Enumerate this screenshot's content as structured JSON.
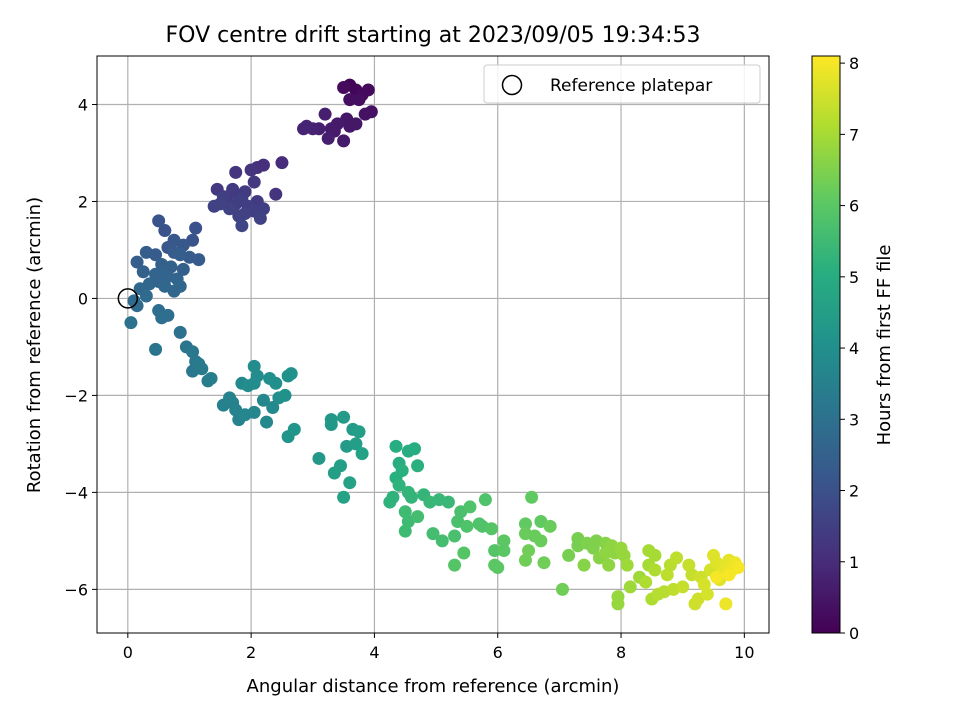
{
  "chart_data": {
    "type": "scatter",
    "title": "FOV centre drift starting at 2023/09/05 19:34:53",
    "xlabel": "Angular distance from reference (arcmin)",
    "ylabel": "Rotation from reference (arcmin)",
    "xlim": [
      -0.5,
      10.4
    ],
    "ylim": [
      -6.9,
      5.0
    ],
    "xticks": [
      0,
      2,
      4,
      6,
      8,
      10
    ],
    "yticks": [
      -6,
      -4,
      -2,
      0,
      2,
      4
    ],
    "xtick_labels": [
      "0",
      "2",
      "4",
      "6",
      "8",
      "10"
    ],
    "ytick_labels": [
      "−6",
      "−4",
      "−2",
      "0",
      "2",
      "4"
    ],
    "grid": true,
    "legend": {
      "placement": "top-right",
      "entries": [
        "Reference platepar"
      ]
    },
    "reference_point": {
      "x": 0,
      "y": 0
    },
    "colorbar": {
      "label": "Hours from first FF file",
      "range": [
        0,
        8.1
      ],
      "ticks": [
        0,
        1,
        2,
        3,
        4,
        5,
        6,
        7,
        8
      ],
      "tick_labels": [
        "0",
        "1",
        "2",
        "3",
        "4",
        "5",
        "6",
        "7",
        "8"
      ],
      "colormap": "viridis"
    },
    "points": [
      {
        "x": 3.6,
        "y": 4.4,
        "h": 0.1
      },
      {
        "x": 3.7,
        "y": 4.3,
        "h": 0.1
      },
      {
        "x": 3.8,
        "y": 4.2,
        "h": 0.2
      },
      {
        "x": 3.9,
        "y": 4.3,
        "h": 0.2
      },
      {
        "x": 3.6,
        "y": 4.1,
        "h": 0.3
      },
      {
        "x": 3.75,
        "y": 4.1,
        "h": 0.3
      },
      {
        "x": 3.5,
        "y": 4.35,
        "h": 0.2
      },
      {
        "x": 3.85,
        "y": 3.8,
        "h": 0.4
      },
      {
        "x": 3.95,
        "y": 3.85,
        "h": 0.4
      },
      {
        "x": 3.7,
        "y": 3.6,
        "h": 0.5
      },
      {
        "x": 3.55,
        "y": 3.7,
        "h": 0.5
      },
      {
        "x": 3.4,
        "y": 3.6,
        "h": 0.6
      },
      {
        "x": 3.3,
        "y": 3.5,
        "h": 0.6
      },
      {
        "x": 3.2,
        "y": 3.8,
        "h": 0.7
      },
      {
        "x": 3.1,
        "y": 3.5,
        "h": 0.7
      },
      {
        "x": 2.9,
        "y": 3.55,
        "h": 0.8
      },
      {
        "x": 2.85,
        "y": 3.5,
        "h": 0.8
      },
      {
        "x": 3.5,
        "y": 3.25,
        "h": 0.6
      },
      {
        "x": 3.35,
        "y": 3.45,
        "h": 0.6
      },
      {
        "x": 3.6,
        "y": 3.55,
        "h": 0.5
      },
      {
        "x": 3.0,
        "y": 3.5,
        "h": 0.8
      },
      {
        "x": 3.25,
        "y": 3.3,
        "h": 0.7
      },
      {
        "x": 2.5,
        "y": 2.8,
        "h": 1.0
      },
      {
        "x": 2.1,
        "y": 2.7,
        "h": 1.1
      },
      {
        "x": 2.2,
        "y": 2.75,
        "h": 1.1
      },
      {
        "x": 1.75,
        "y": 2.6,
        "h": 1.2
      },
      {
        "x": 2.0,
        "y": 2.65,
        "h": 1.2
      },
      {
        "x": 2.4,
        "y": 2.15,
        "h": 1.2
      },
      {
        "x": 1.45,
        "y": 2.25,
        "h": 1.3
      },
      {
        "x": 1.7,
        "y": 2.2,
        "h": 1.4
      },
      {
        "x": 1.9,
        "y": 2.2,
        "h": 1.4
      },
      {
        "x": 1.8,
        "y": 2.1,
        "h": 1.3
      },
      {
        "x": 1.6,
        "y": 2.0,
        "h": 1.4
      },
      {
        "x": 1.75,
        "y": 1.95,
        "h": 1.5
      },
      {
        "x": 1.95,
        "y": 1.9,
        "h": 1.5
      },
      {
        "x": 2.1,
        "y": 2.0,
        "h": 1.4
      },
      {
        "x": 1.85,
        "y": 2.05,
        "h": 1.5
      },
      {
        "x": 1.65,
        "y": 1.85,
        "h": 1.6
      },
      {
        "x": 1.55,
        "y": 2.1,
        "h": 1.5
      },
      {
        "x": 2.05,
        "y": 1.8,
        "h": 1.5
      },
      {
        "x": 1.4,
        "y": 1.9,
        "h": 1.6
      },
      {
        "x": 1.5,
        "y": 1.95,
        "h": 1.6
      },
      {
        "x": 2.2,
        "y": 1.85,
        "h": 1.5
      },
      {
        "x": 1.9,
        "y": 1.75,
        "h": 1.6
      },
      {
        "x": 1.8,
        "y": 1.7,
        "h": 1.6
      },
      {
        "x": 1.85,
        "y": 1.5,
        "h": 1.7
      },
      {
        "x": 2.15,
        "y": 1.65,
        "h": 1.6
      },
      {
        "x": 2.05,
        "y": 2.4,
        "h": 1.3
      },
      {
        "x": 1.7,
        "y": 2.25,
        "h": 1.4
      },
      {
        "x": 1.1,
        "y": 1.45,
        "h": 2.0
      },
      {
        "x": 0.5,
        "y": 1.6,
        "h": 2.1
      },
      {
        "x": 0.6,
        "y": 1.4,
        "h": 2.1
      },
      {
        "x": 0.75,
        "y": 1.2,
        "h": 2.2
      },
      {
        "x": 0.9,
        "y": 1.1,
        "h": 2.2
      },
      {
        "x": 1.05,
        "y": 1.2,
        "h": 2.1
      },
      {
        "x": 0.65,
        "y": 1.05,
        "h": 2.2
      },
      {
        "x": 0.45,
        "y": 0.9,
        "h": 2.3
      },
      {
        "x": 0.75,
        "y": 0.95,
        "h": 2.3
      },
      {
        "x": 1.0,
        "y": 0.85,
        "h": 2.3
      },
      {
        "x": 1.15,
        "y": 0.8,
        "h": 2.3
      },
      {
        "x": 0.85,
        "y": 0.9,
        "h": 2.4
      },
      {
        "x": 0.3,
        "y": 0.95,
        "h": 2.4
      },
      {
        "x": 0.15,
        "y": 0.75,
        "h": 2.4
      },
      {
        "x": 0.55,
        "y": 0.7,
        "h": 2.5
      },
      {
        "x": 0.7,
        "y": 0.65,
        "h": 2.5
      },
      {
        "x": 0.9,
        "y": 0.6,
        "h": 2.5
      },
      {
        "x": 0.25,
        "y": 0.55,
        "h": 2.5
      },
      {
        "x": 0.45,
        "y": 0.5,
        "h": 2.6
      },
      {
        "x": 0.65,
        "y": 0.45,
        "h": 2.6
      },
      {
        "x": 0.8,
        "y": 0.4,
        "h": 2.6
      },
      {
        "x": 0.5,
        "y": 0.35,
        "h": 2.6
      },
      {
        "x": 0.35,
        "y": 0.3,
        "h": 2.7
      },
      {
        "x": 0.6,
        "y": 0.25,
        "h": 2.7
      },
      {
        "x": 0.2,
        "y": 0.2,
        "h": 2.7
      },
      {
        "x": 0.75,
        "y": 0.15,
        "h": 2.7
      },
      {
        "x": 0.3,
        "y": 0.05,
        "h": 2.8
      },
      {
        "x": 0.1,
        "y": -0.05,
        "h": 2.8
      },
      {
        "x": 0.15,
        "y": -0.15,
        "h": 2.8
      },
      {
        "x": 0.55,
        "y": 0.5,
        "h": 2.6
      },
      {
        "x": 0.85,
        "y": 0.25,
        "h": 2.7
      },
      {
        "x": 0.5,
        "y": -0.25,
        "h": 2.9
      },
      {
        "x": 0.55,
        "y": -0.4,
        "h": 2.9
      },
      {
        "x": 0.65,
        "y": -0.35,
        "h": 2.9
      },
      {
        "x": 0.05,
        "y": -0.5,
        "h": 3.0
      },
      {
        "x": 0.85,
        "y": -0.7,
        "h": 3.0
      },
      {
        "x": 0.45,
        "y": -1.05,
        "h": 3.1
      },
      {
        "x": 0.95,
        "y": -1.0,
        "h": 3.1
      },
      {
        "x": 1.05,
        "y": -1.1,
        "h": 3.2
      },
      {
        "x": 1.1,
        "y": -1.3,
        "h": 3.2
      },
      {
        "x": 1.05,
        "y": -1.5,
        "h": 3.2
      },
      {
        "x": 1.15,
        "y": -1.35,
        "h": 3.3
      },
      {
        "x": 1.2,
        "y": -1.45,
        "h": 3.3
      },
      {
        "x": 1.35,
        "y": -1.65,
        "h": 3.4
      },
      {
        "x": 1.3,
        "y": -1.7,
        "h": 3.4
      },
      {
        "x": 1.55,
        "y": -2.2,
        "h": 3.5
      },
      {
        "x": 1.7,
        "y": -2.15,
        "h": 3.5
      },
      {
        "x": 1.65,
        "y": -2.05,
        "h": 3.6
      },
      {
        "x": 1.75,
        "y": -2.3,
        "h": 3.6
      },
      {
        "x": 1.8,
        "y": -2.5,
        "h": 3.6
      },
      {
        "x": 1.9,
        "y": -2.4,
        "h": 3.7
      },
      {
        "x": 2.05,
        "y": -2.35,
        "h": 3.7
      },
      {
        "x": 2.2,
        "y": -2.1,
        "h": 3.7
      },
      {
        "x": 2.25,
        "y": -2.55,
        "h": 3.8
      },
      {
        "x": 2.35,
        "y": -2.25,
        "h": 3.8
      },
      {
        "x": 1.85,
        "y": -1.75,
        "h": 3.8
      },
      {
        "x": 1.95,
        "y": -1.8,
        "h": 3.9
      },
      {
        "x": 2.05,
        "y": -1.4,
        "h": 3.9
      },
      {
        "x": 2.1,
        "y": -1.6,
        "h": 3.9
      },
      {
        "x": 2.05,
        "y": -1.75,
        "h": 3.9
      },
      {
        "x": 2.3,
        "y": -1.65,
        "h": 4.0
      },
      {
        "x": 2.4,
        "y": -1.75,
        "h": 4.0
      },
      {
        "x": 2.45,
        "y": -2.05,
        "h": 4.0
      },
      {
        "x": 2.55,
        "y": -2.0,
        "h": 4.1
      },
      {
        "x": 2.6,
        "y": -1.6,
        "h": 4.1
      },
      {
        "x": 2.65,
        "y": -1.55,
        "h": 4.1
      },
      {
        "x": 2.6,
        "y": -2.85,
        "h": 4.2
      },
      {
        "x": 2.7,
        "y": -2.7,
        "h": 4.2
      },
      {
        "x": 3.1,
        "y": -3.3,
        "h": 4.3
      },
      {
        "x": 3.3,
        "y": -2.5,
        "h": 4.3
      },
      {
        "x": 3.3,
        "y": -2.6,
        "h": 4.3
      },
      {
        "x": 3.5,
        "y": -2.45,
        "h": 4.4
      },
      {
        "x": 3.55,
        "y": -3.05,
        "h": 4.4
      },
      {
        "x": 3.65,
        "y": -2.7,
        "h": 4.4
      },
      {
        "x": 3.7,
        "y": -3.0,
        "h": 4.5
      },
      {
        "x": 3.75,
        "y": -2.75,
        "h": 4.5
      },
      {
        "x": 3.45,
        "y": -3.45,
        "h": 4.5
      },
      {
        "x": 3.35,
        "y": -3.6,
        "h": 4.5
      },
      {
        "x": 3.6,
        "y": -3.8,
        "h": 4.6
      },
      {
        "x": 3.5,
        "y": -4.1,
        "h": 4.6
      },
      {
        "x": 3.8,
        "y": -3.2,
        "h": 4.6
      },
      {
        "x": 4.35,
        "y": -3.05,
        "h": 5.0
      },
      {
        "x": 4.55,
        "y": -3.15,
        "h": 5.0
      },
      {
        "x": 4.65,
        "y": -3.1,
        "h": 5.0
      },
      {
        "x": 4.4,
        "y": -3.4,
        "h": 5.0
      },
      {
        "x": 4.45,
        "y": -3.55,
        "h": 5.1
      },
      {
        "x": 4.7,
        "y": -3.45,
        "h": 5.1
      },
      {
        "x": 4.35,
        "y": -3.7,
        "h": 5.1
      },
      {
        "x": 4.4,
        "y": -3.85,
        "h": 5.2
      },
      {
        "x": 4.3,
        "y": -4.1,
        "h": 5.2
      },
      {
        "x": 4.25,
        "y": -4.2,
        "h": 5.2
      },
      {
        "x": 4.55,
        "y": -4.0,
        "h": 5.3
      },
      {
        "x": 4.6,
        "y": -4.1,
        "h": 5.3
      },
      {
        "x": 4.8,
        "y": -4.05,
        "h": 5.3
      },
      {
        "x": 4.9,
        "y": -4.2,
        "h": 5.4
      },
      {
        "x": 5.05,
        "y": -4.15,
        "h": 5.4
      },
      {
        "x": 5.2,
        "y": -4.2,
        "h": 5.4
      },
      {
        "x": 4.5,
        "y": -4.4,
        "h": 5.5
      },
      {
        "x": 4.55,
        "y": -4.6,
        "h": 5.5
      },
      {
        "x": 4.5,
        "y": -4.8,
        "h": 5.5
      },
      {
        "x": 4.7,
        "y": -4.5,
        "h": 5.6
      },
      {
        "x": 4.95,
        "y": -4.85,
        "h": 5.6
      },
      {
        "x": 5.1,
        "y": -5.0,
        "h": 5.6
      },
      {
        "x": 5.3,
        "y": -4.9,
        "h": 5.7
      },
      {
        "x": 5.35,
        "y": -4.6,
        "h": 5.7
      },
      {
        "x": 5.4,
        "y": -4.4,
        "h": 5.7
      },
      {
        "x": 5.5,
        "y": -4.7,
        "h": 5.8
      },
      {
        "x": 5.55,
        "y": -4.3,
        "h": 5.8
      },
      {
        "x": 5.8,
        "y": -4.15,
        "h": 5.8
      },
      {
        "x": 5.7,
        "y": -4.65,
        "h": 5.8
      },
      {
        "x": 5.75,
        "y": -4.7,
        "h": 5.8
      },
      {
        "x": 5.9,
        "y": -4.75,
        "h": 5.9
      },
      {
        "x": 5.45,
        "y": -5.25,
        "h": 5.9
      },
      {
        "x": 5.3,
        "y": -5.5,
        "h": 5.9
      },
      {
        "x": 5.95,
        "y": -5.2,
        "h": 5.9
      },
      {
        "x": 6.0,
        "y": -5.55,
        "h": 6.0
      },
      {
        "x": 6.1,
        "y": -5.2,
        "h": 6.0
      },
      {
        "x": 6.1,
        "y": -5.0,
        "h": 6.0
      },
      {
        "x": 5.95,
        "y": -5.5,
        "h": 6.0
      },
      {
        "x": 6.45,
        "y": -4.65,
        "h": 6.1
      },
      {
        "x": 6.55,
        "y": -4.1,
        "h": 6.1
      },
      {
        "x": 6.7,
        "y": -4.6,
        "h": 6.1
      },
      {
        "x": 6.85,
        "y": -4.7,
        "h": 6.2
      },
      {
        "x": 6.45,
        "y": -4.85,
        "h": 6.2
      },
      {
        "x": 6.6,
        "y": -4.9,
        "h": 6.2
      },
      {
        "x": 6.7,
        "y": -5.0,
        "h": 6.2
      },
      {
        "x": 6.5,
        "y": -5.2,
        "h": 6.3
      },
      {
        "x": 6.45,
        "y": -5.4,
        "h": 6.3
      },
      {
        "x": 6.75,
        "y": -5.45,
        "h": 6.3
      },
      {
        "x": 7.05,
        "y": -6.0,
        "h": 6.3
      },
      {
        "x": 7.15,
        "y": -5.3,
        "h": 6.4
      },
      {
        "x": 7.3,
        "y": -5.1,
        "h": 6.4
      },
      {
        "x": 7.3,
        "y": -4.95,
        "h": 6.4
      },
      {
        "x": 7.45,
        "y": -5.05,
        "h": 6.5
      },
      {
        "x": 7.6,
        "y": -5.0,
        "h": 6.5
      },
      {
        "x": 7.55,
        "y": -5.15,
        "h": 6.5
      },
      {
        "x": 7.4,
        "y": -5.5,
        "h": 6.6
      },
      {
        "x": 7.65,
        "y": -5.35,
        "h": 6.6
      },
      {
        "x": 7.75,
        "y": -5.05,
        "h": 6.6
      },
      {
        "x": 7.75,
        "y": -5.25,
        "h": 6.7
      },
      {
        "x": 7.85,
        "y": -5.1,
        "h": 6.7
      },
      {
        "x": 7.9,
        "y": -5.25,
        "h": 6.7
      },
      {
        "x": 7.8,
        "y": -5.5,
        "h": 6.7
      },
      {
        "x": 8.0,
        "y": -5.15,
        "h": 6.8
      },
      {
        "x": 8.05,
        "y": -5.3,
        "h": 6.8
      },
      {
        "x": 7.95,
        "y": -6.15,
        "h": 6.8
      },
      {
        "x": 7.95,
        "y": -6.3,
        "h": 6.8
      },
      {
        "x": 8.1,
        "y": -5.5,
        "h": 6.9
      },
      {
        "x": 8.15,
        "y": -5.95,
        "h": 6.9
      },
      {
        "x": 8.3,
        "y": -5.75,
        "h": 6.9
      },
      {
        "x": 8.45,
        "y": -5.2,
        "h": 7.0
      },
      {
        "x": 8.55,
        "y": -5.3,
        "h": 7.0
      },
      {
        "x": 8.45,
        "y": -5.5,
        "h": 7.0
      },
      {
        "x": 8.55,
        "y": -5.6,
        "h": 7.1
      },
      {
        "x": 8.4,
        "y": -5.85,
        "h": 7.1
      },
      {
        "x": 8.5,
        "y": -6.2,
        "h": 7.1
      },
      {
        "x": 8.6,
        "y": -6.1,
        "h": 7.2
      },
      {
        "x": 8.7,
        "y": -6.05,
        "h": 7.2
      },
      {
        "x": 8.8,
        "y": -5.5,
        "h": 7.2
      },
      {
        "x": 8.75,
        "y": -5.7,
        "h": 7.3
      },
      {
        "x": 8.9,
        "y": -5.35,
        "h": 7.3
      },
      {
        "x": 8.85,
        "y": -6.0,
        "h": 7.3
      },
      {
        "x": 9.0,
        "y": -5.95,
        "h": 7.4
      },
      {
        "x": 9.1,
        "y": -5.5,
        "h": 7.4
      },
      {
        "x": 9.15,
        "y": -5.7,
        "h": 7.4
      },
      {
        "x": 9.2,
        "y": -6.3,
        "h": 7.5
      },
      {
        "x": 9.25,
        "y": -6.2,
        "h": 7.5
      },
      {
        "x": 9.3,
        "y": -5.75,
        "h": 7.5
      },
      {
        "x": 9.35,
        "y": -5.9,
        "h": 7.6
      },
      {
        "x": 9.4,
        "y": -6.1,
        "h": 7.6
      },
      {
        "x": 9.45,
        "y": -5.6,
        "h": 7.6
      },
      {
        "x": 9.5,
        "y": -5.3,
        "h": 7.7
      },
      {
        "x": 9.55,
        "y": -5.45,
        "h": 7.7
      },
      {
        "x": 9.6,
        "y": -5.8,
        "h": 7.7
      },
      {
        "x": 9.65,
        "y": -5.65,
        "h": 7.8
      },
      {
        "x": 9.7,
        "y": -5.5,
        "h": 7.8
      },
      {
        "x": 9.75,
        "y": -5.4,
        "h": 7.8
      },
      {
        "x": 9.8,
        "y": -5.6,
        "h": 7.9
      },
      {
        "x": 9.85,
        "y": -5.45,
        "h": 7.9
      },
      {
        "x": 9.9,
        "y": -5.55,
        "h": 8.0
      },
      {
        "x": 9.7,
        "y": -6.3,
        "h": 7.9
      },
      {
        "x": 9.55,
        "y": -5.75,
        "h": 8.0
      },
      {
        "x": 9.75,
        "y": -5.7,
        "h": 8.0
      }
    ]
  }
}
